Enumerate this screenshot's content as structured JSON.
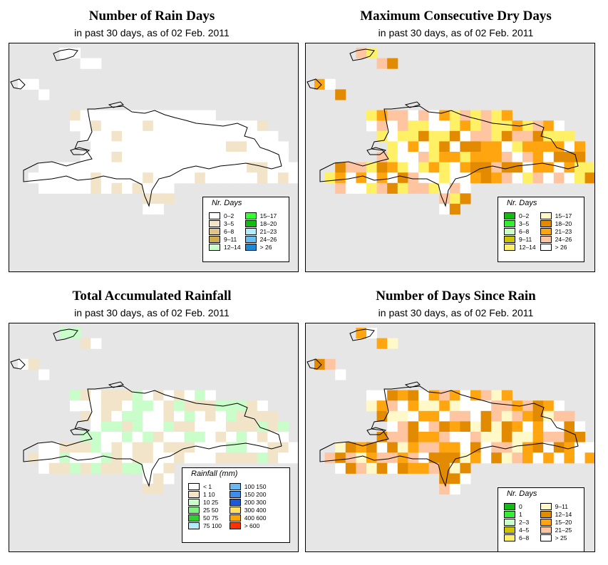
{
  "panels": [
    {
      "title": "Number of Rain Days",
      "subtitle": "in past 30 days, as of  02 Feb. 2011",
      "legend_title": "Nr. Days",
      "legend": [
        {
          "label": "0–2",
          "color": "#ffffff"
        },
        {
          "label": "15–17",
          "color": "#33ff33"
        },
        {
          "label": "3–5",
          "color": "#f2e4c9"
        },
        {
          "label": "18–20",
          "color": "#11bb11"
        },
        {
          "label": "6–8",
          "color": "#ddc48c"
        },
        {
          "label": "21–23",
          "color": "#b3ecfb"
        },
        {
          "label": "9–11",
          "color": "#ccad4a"
        },
        {
          "label": "24–26",
          "color": "#66bff0"
        },
        {
          "label": "12–14",
          "color": "#c9fdc9"
        },
        {
          "label": "> 26",
          "color": "#1a8ad8"
        }
      ]
    },
    {
      "title": "Maximum Consecutive Dry Days",
      "subtitle": "in past 30 days, as of  02 Feb. 2011",
      "legend_title": "Nr. Days",
      "legend": [
        {
          "label": "0–2",
          "color": "#11bb11"
        },
        {
          "label": "15–17",
          "color": "#fff8c8"
        },
        {
          "label": "3–5",
          "color": "#33ee33"
        },
        {
          "label": "18–20",
          "color": "#e28a00"
        },
        {
          "label": "6–8",
          "color": "#c9fdc9"
        },
        {
          "label": "21–23",
          "color": "#ffa510"
        },
        {
          "label": "9–11",
          "color": "#ccc400"
        },
        {
          "label": "24–26",
          "color": "#ffc4a0"
        },
        {
          "label": "12–14",
          "color": "#fff066"
        },
        {
          "label": "> 26",
          "color": "#ffffff"
        }
      ]
    },
    {
      "title": "Total Accumulated Rainfall",
      "subtitle": "in past 30 days, as of  02 Feb. 2011",
      "legend_title": "Rainfall (mm)",
      "legend": [
        {
          "label": "< 1",
          "color": "#ffffff"
        },
        {
          "label": "100  150",
          "color": "#6ab7f2"
        },
        {
          "label": "1     10",
          "color": "#f2e4c9"
        },
        {
          "label": "150  200",
          "color": "#3d8ee8"
        },
        {
          "label": "10    25",
          "color": "#c9fdc9"
        },
        {
          "label": "200  300",
          "color": "#1a5ad8"
        },
        {
          "label": "25    50",
          "color": "#80f080"
        },
        {
          "label": "300  400",
          "color": "#ffe066"
        },
        {
          "label": "50    75",
          "color": "#33cc33"
        },
        {
          "label": "400  600",
          "color": "#ffa500"
        },
        {
          "label": "75  100",
          "color": "#b3ecfb"
        },
        {
          "label": "> 600",
          "color": "#ff3300"
        }
      ]
    },
    {
      "title": "Number of Days Since Rain",
      "subtitle": "in past 30 days, as of  02 Feb. 2011",
      "legend_title": "Nr. Days",
      "legend": [
        {
          "label": "0",
          "color": "#11bb11"
        },
        {
          "label": "9–11",
          "color": "#fff8c8"
        },
        {
          "label": "1",
          "color": "#33ee33"
        },
        {
          "label": "12–14",
          "color": "#e28a00"
        },
        {
          "label": "2–3",
          "color": "#c9fdc9"
        },
        {
          "label": "15–20",
          "color": "#ffa510"
        },
        {
          "label": "4–5",
          "color": "#ccc400"
        },
        {
          "label": "21–25",
          "color": "#ffc4a0"
        },
        {
          "label": "6–8",
          "color": "#fff066"
        },
        {
          "label": "> 25",
          "color": "#ffffff"
        }
      ]
    }
  ],
  "colors": {
    "ocean": "#e6e6e6",
    "land_default": "#ffffff",
    "outline": "#000000"
  }
}
